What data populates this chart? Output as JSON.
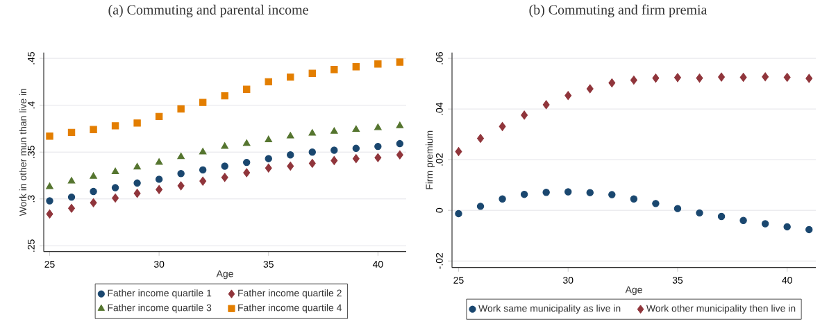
{
  "chart_data": [
    {
      "type": "scatter",
      "title": "(a) Commuting and parental income",
      "xlabel": "Age",
      "ylabel": "Work in other mun than live in",
      "x": [
        25,
        26,
        27,
        28,
        29,
        30,
        31,
        32,
        33,
        34,
        35,
        36,
        37,
        38,
        39,
        40,
        41
      ],
      "xlim": [
        24.73,
        41.29
      ],
      "ylim": [
        0.2438,
        0.4562
      ],
      "xticks": [
        25,
        30,
        35,
        40
      ],
      "yticks": [
        {
          "value": 0.25,
          "label": ".25"
        },
        {
          "value": 0.3,
          "label": ".3"
        },
        {
          "value": 0.35,
          "label": ".35"
        },
        {
          "value": 0.4,
          "label": ".4"
        },
        {
          "value": 0.45,
          "label": ".45"
        }
      ],
      "grid": "y",
      "legend": "bottom",
      "series": [
        {
          "name": "Father income quartile 1",
          "color": "#1a476f",
          "marker": "circle",
          "values": [
            0.298,
            0.302,
            0.308,
            0.312,
            0.317,
            0.321,
            0.327,
            0.331,
            0.335,
            0.339,
            0.343,
            0.347,
            0.35,
            0.352,
            0.354,
            0.356,
            0.359
          ]
        },
        {
          "name": "Father income quartile 2",
          "color": "#90353b",
          "marker": "diamond",
          "values": [
            0.284,
            0.29,
            0.296,
            0.301,
            0.306,
            0.31,
            0.314,
            0.319,
            0.323,
            0.328,
            0.333,
            0.335,
            0.338,
            0.341,
            0.343,
            0.344,
            0.347
          ]
        },
        {
          "name": "Father income quartile 3",
          "color": "#55752f",
          "marker": "triangle",
          "values": [
            0.313,
            0.319,
            0.324,
            0.329,
            0.334,
            0.339,
            0.345,
            0.35,
            0.356,
            0.359,
            0.363,
            0.367,
            0.37,
            0.372,
            0.374,
            0.376,
            0.378
          ]
        },
        {
          "name": "Father income quartile 4",
          "color": "#e37e00",
          "marker": "square",
          "values": [
            0.367,
            0.371,
            0.374,
            0.378,
            0.381,
            0.388,
            0.396,
            0.403,
            0.41,
            0.417,
            0.425,
            0.43,
            0.434,
            0.438,
            0.441,
            0.444,
            0.446
          ]
        }
      ]
    },
    {
      "type": "scatter",
      "title": "(b) Commuting and firm premia",
      "xlabel": "Age",
      "ylabel": "Firm premium",
      "x": [
        25,
        26,
        27,
        28,
        29,
        30,
        31,
        32,
        33,
        34,
        35,
        36,
        37,
        38,
        39,
        40,
        41
      ],
      "xlim": [
        24.7,
        41.31
      ],
      "ylim": [
        -0.0226,
        0.0623
      ],
      "xticks": [
        25,
        30,
        35,
        40
      ],
      "yticks": [
        {
          "value": -0.02,
          "label": "-.02"
        },
        {
          "value": 0,
          "label": "0"
        },
        {
          "value": 0.02,
          "label": ".02"
        },
        {
          "value": 0.04,
          "label": ".04"
        },
        {
          "value": 0.06,
          "label": ".06"
        }
      ],
      "grid": "y",
      "legend": "bottom",
      "series": [
        {
          "name": "Work same municipality as live in",
          "color": "#1a476f",
          "marker": "circle",
          "values": [
            -0.0013,
            0.0016,
            0.0045,
            0.0063,
            0.0071,
            0.0073,
            0.007,
            0.0062,
            0.0045,
            0.0027,
            0.0007,
            -0.001,
            -0.0024,
            -0.004,
            -0.0053,
            -0.0065,
            -0.0076
          ]
        },
        {
          "name": "Work other municipality then live in",
          "color": "#90353b",
          "marker": "diamond",
          "values": [
            0.0232,
            0.0284,
            0.0331,
            0.0376,
            0.0417,
            0.0453,
            0.048,
            0.0503,
            0.0514,
            0.0522,
            0.0524,
            0.0522,
            0.0526,
            0.0525,
            0.0527,
            0.0525,
            0.0521
          ]
        }
      ]
    }
  ]
}
